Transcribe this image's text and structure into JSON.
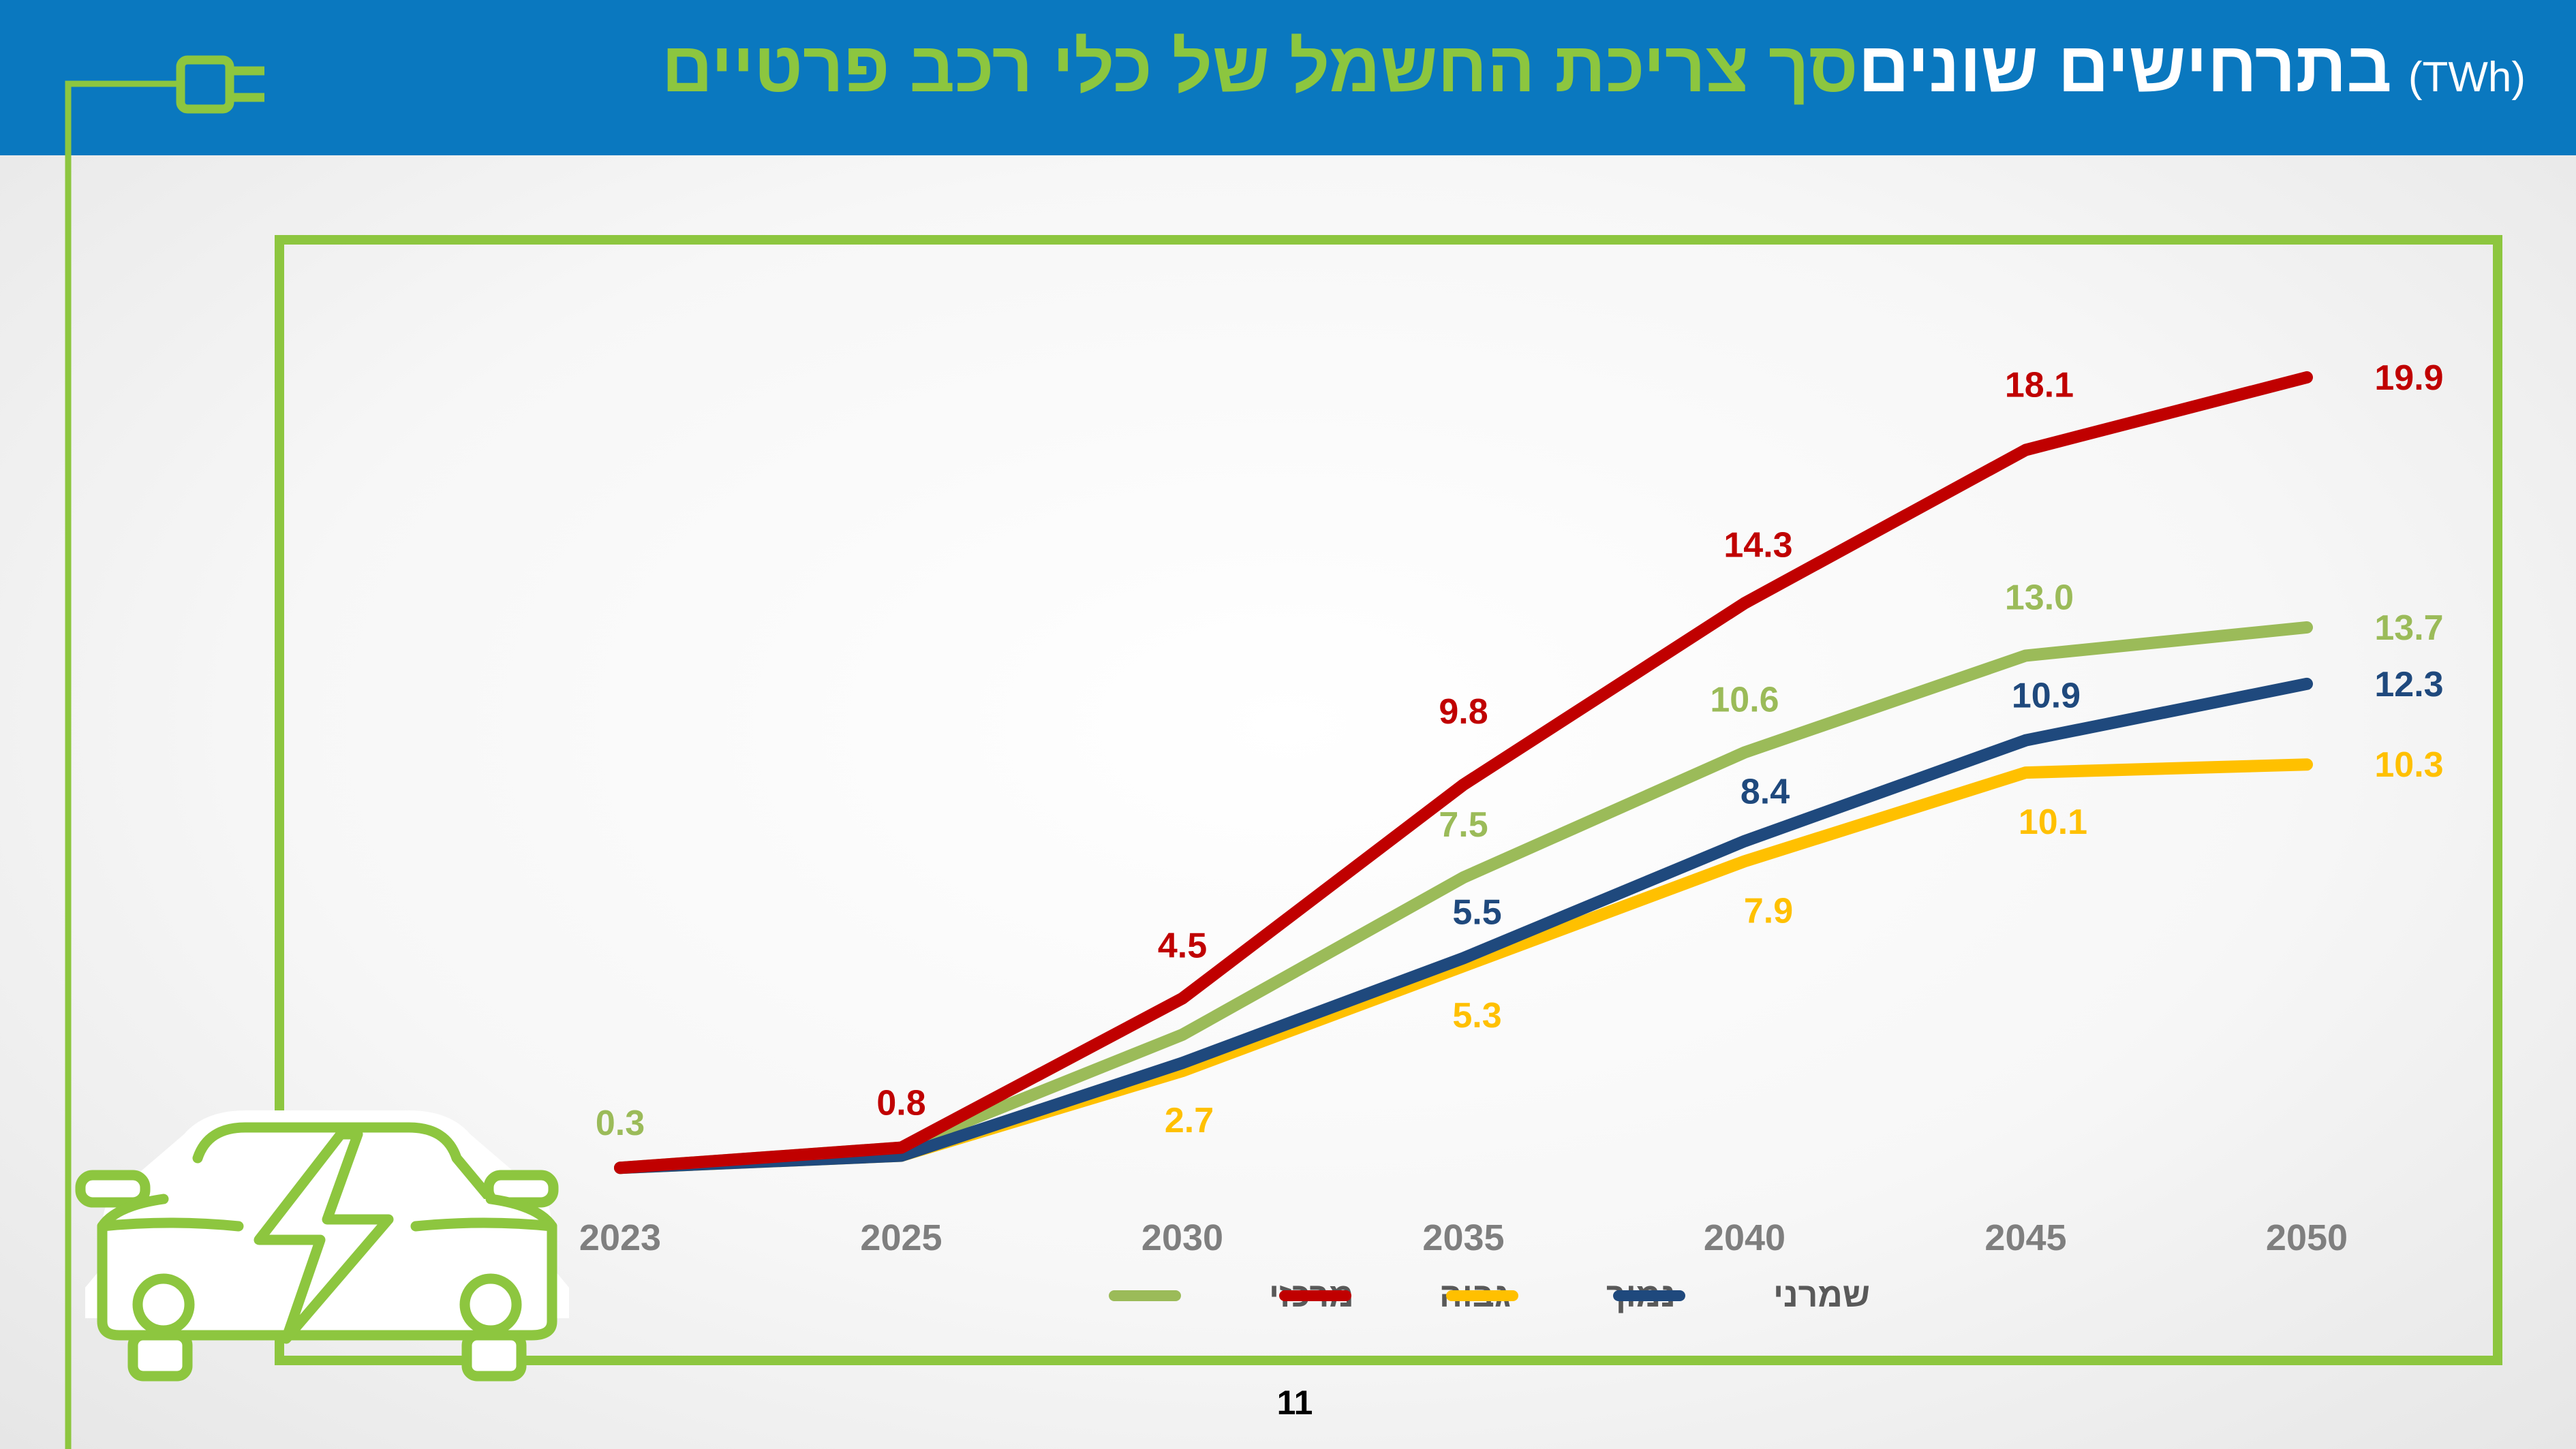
{
  "header": {
    "title_green": "סך צריכת החשמל של כלי רכב פרטיים",
    "title_white": "בתרחישים שונים",
    "title_unit": "(TWh)"
  },
  "page_number": "11",
  "colors": {
    "header_bg": "#0a78bf",
    "accent_green": "#8cc63f",
    "frame_green": "#8dc63f"
  },
  "icons": [
    "plug-icon",
    "electric-car-icon"
  ],
  "chart_data": {
    "type": "line",
    "categories": [
      "2023",
      "2025",
      "2030",
      "2035",
      "2040",
      "2045",
      "2050"
    ],
    "series": [
      {
        "name": "מרכזי",
        "color": "#9bbb59",
        "values": [
          0.3,
          0.8,
          3.6,
          7.5,
          10.6,
          13.0,
          13.7
        ],
        "labels": [
          "0.3",
          "",
          "",
          "7.5",
          "10.6",
          "13.0",
          "13.7"
        ]
      },
      {
        "name": "גבוה",
        "color": "#c00000",
        "values": [
          0.3,
          0.8,
          4.5,
          9.8,
          14.3,
          18.1,
          19.9
        ],
        "labels": [
          "",
          "0.8",
          "4.5",
          "9.8",
          "14.3",
          "18.1",
          "19.9"
        ]
      },
      {
        "name": "נמוך",
        "color": "#ffc000",
        "values": [
          0.3,
          0.6,
          2.7,
          5.3,
          7.9,
          10.1,
          10.3
        ],
        "labels": [
          "",
          "",
          "2.7",
          "5.3",
          "7.9",
          "10.1",
          "10.3"
        ]
      },
      {
        "name": "שמרני",
        "color": "#1f497d",
        "values": [
          0.3,
          0.6,
          2.9,
          5.5,
          8.4,
          10.9,
          12.3
        ],
        "labels": [
          "",
          "",
          "",
          "5.5",
          "8.4",
          "10.9",
          "12.3"
        ]
      }
    ],
    "ylim": [
      0,
      25
    ],
    "grid": false,
    "legend_position": "bottom",
    "xlabel": "",
    "ylabel": ""
  }
}
